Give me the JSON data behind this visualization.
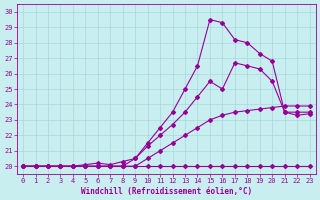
{
  "xlabel": "Windchill (Refroidissement éolien,°C)",
  "bg_color": "#c8eef0",
  "grid_color": "#a8d8dc",
  "line_color": "#990099",
  "xlim": [
    -0.5,
    23.5
  ],
  "ylim": [
    19.5,
    30.5
  ],
  "xticks": [
    0,
    1,
    2,
    3,
    4,
    5,
    6,
    7,
    8,
    9,
    10,
    11,
    12,
    13,
    14,
    15,
    16,
    17,
    18,
    19,
    20,
    21,
    22,
    23
  ],
  "yticks": [
    20,
    21,
    22,
    23,
    24,
    25,
    26,
    27,
    28,
    29,
    30
  ],
  "line1_x": [
    0,
    1,
    2,
    3,
    4,
    5,
    6,
    7,
    8,
    9,
    10,
    11,
    12,
    13,
    14,
    15,
    16,
    17,
    18,
    19,
    20,
    21,
    22,
    23
  ],
  "line1_y": [
    20.0,
    20.0,
    20.0,
    20.0,
    20.0,
    20.0,
    20.0,
    20.0,
    20.0,
    20.0,
    20.0,
    20.0,
    20.0,
    20.0,
    20.0,
    20.0,
    20.0,
    20.0,
    20.0,
    20.0,
    20.0,
    20.0,
    20.0,
    20.0
  ],
  "line2_x": [
    0,
    1,
    2,
    3,
    4,
    5,
    6,
    7,
    8,
    9,
    10,
    11,
    12,
    13,
    14,
    15,
    16,
    17,
    18,
    19,
    20,
    21,
    22,
    23
  ],
  "line2_y": [
    20.0,
    20.0,
    20.0,
    20.0,
    20.0,
    20.0,
    20.0,
    20.0,
    20.0,
    20.0,
    20.5,
    21.0,
    21.5,
    22.0,
    22.5,
    23.0,
    23.3,
    23.5,
    23.6,
    23.7,
    23.8,
    23.9,
    23.9,
    23.9
  ],
  "line3_x": [
    0,
    1,
    2,
    3,
    4,
    5,
    6,
    7,
    8,
    9,
    10,
    11,
    12,
    13,
    14,
    15,
    16,
    17,
    18,
    19,
    20,
    21,
    22,
    23
  ],
  "line3_y": [
    20.0,
    20.0,
    20.0,
    20.0,
    20.0,
    20.1,
    20.2,
    20.1,
    20.3,
    20.5,
    21.3,
    22.0,
    22.7,
    23.5,
    24.5,
    25.5,
    25.0,
    26.7,
    26.5,
    26.3,
    25.5,
    23.5,
    23.5,
    23.5
  ],
  "line4_x": [
    0,
    1,
    2,
    3,
    4,
    5,
    6,
    7,
    8,
    9,
    10,
    11,
    12,
    13,
    14,
    15,
    16,
    17,
    18,
    19,
    20,
    21,
    22,
    23
  ],
  "line4_y": [
    20.0,
    20.0,
    20.0,
    20.0,
    20.0,
    20.0,
    20.0,
    20.0,
    20.0,
    20.5,
    21.5,
    22.5,
    23.5,
    25.0,
    26.5,
    29.5,
    29.3,
    28.2,
    28.0,
    27.3,
    26.8,
    23.5,
    23.3,
    23.4
  ]
}
